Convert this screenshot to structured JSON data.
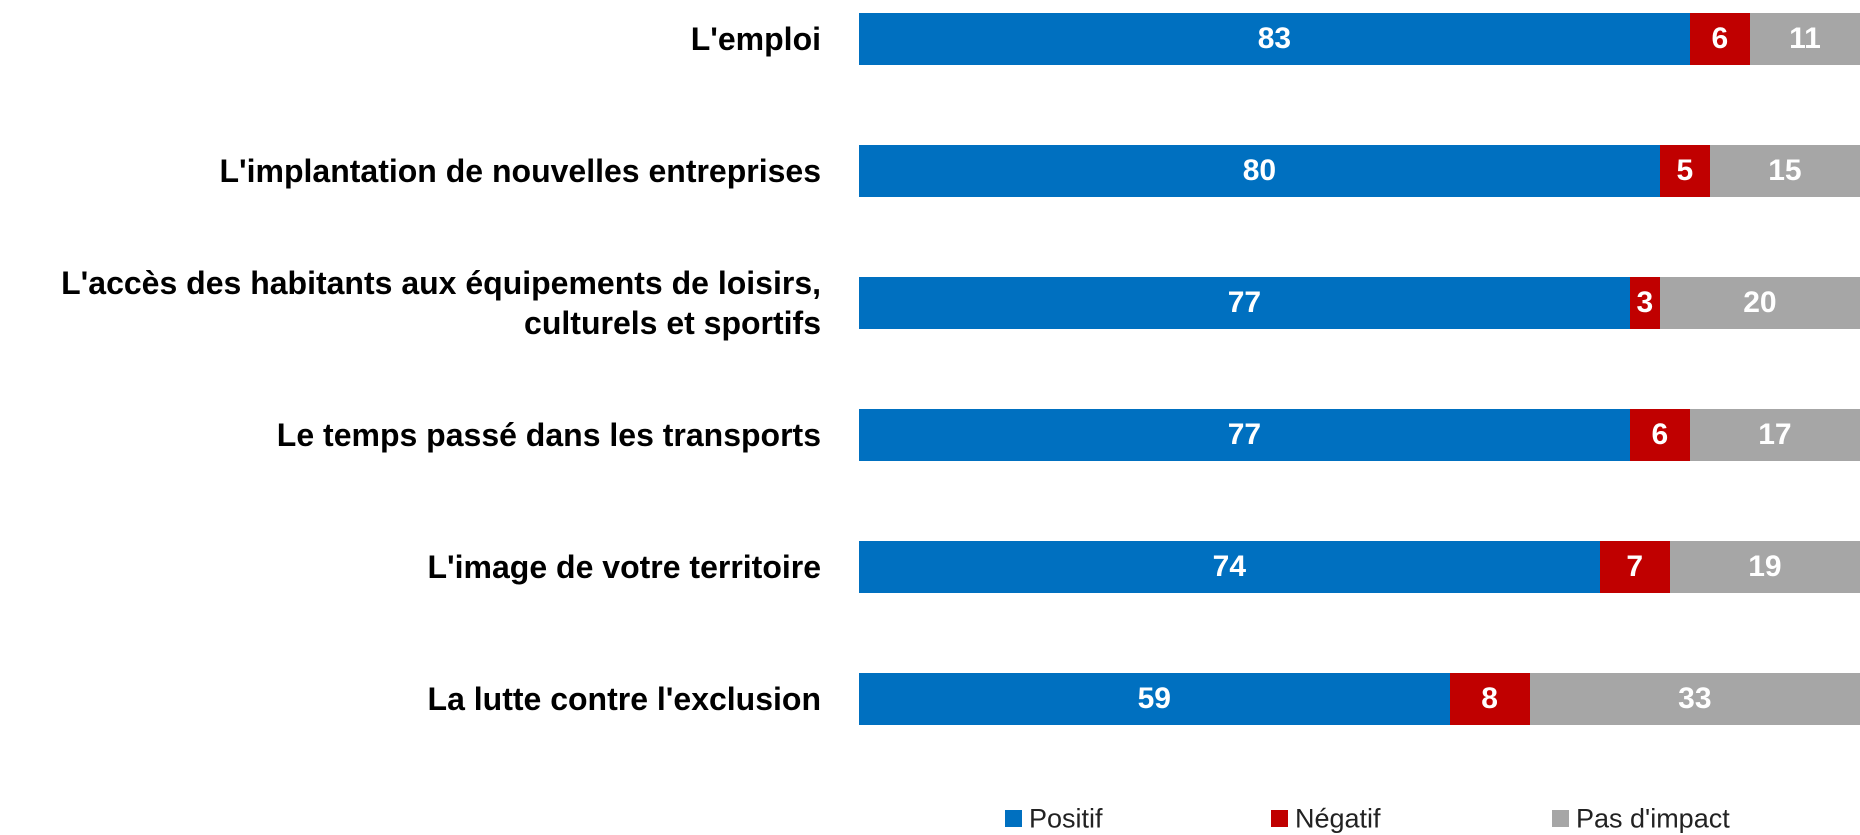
{
  "chart_data": {
    "type": "stacked-bar-horizontal",
    "categories": [
      "L'emploi",
      "L'implantation de nouvelles entreprises",
      "L'accès des habitants aux équipements de loisirs, culturels et sportifs",
      "Le temps passé dans les transports",
      "L'image de votre territoire",
      "La lutte contre l'exclusion"
    ],
    "series": [
      {
        "name": "Positif",
        "color": "#0070c0",
        "values": [
          83,
          80,
          77,
          77,
          74,
          59
        ]
      },
      {
        "name": "Négatif",
        "color": "#c00000",
        "values": [
          6,
          5,
          3,
          6,
          7,
          8
        ]
      },
      {
        "name": "Pas d'impact",
        "color": "#a6a6a6",
        "values": [
          11,
          15,
          20,
          17,
          19,
          33
        ]
      }
    ],
    "xlim": [
      0,
      100
    ],
    "legend": "bottom"
  }
}
